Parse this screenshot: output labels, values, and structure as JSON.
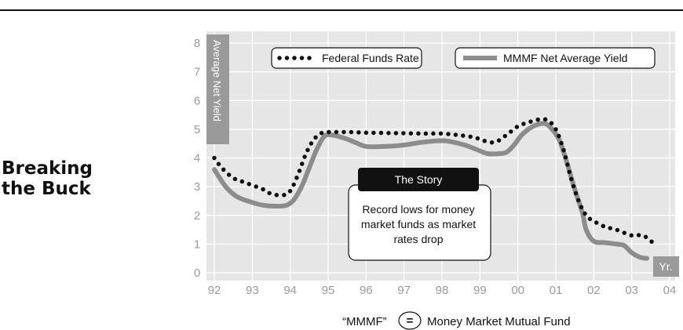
{
  "title_lines": [
    "Breaking",
    "the Buck"
  ],
  "chart_data": {
    "type": "line",
    "ylabel": "Average Net Yield",
    "xlabel": "Yr.",
    "ylim": [
      0,
      8
    ],
    "y_ticks": [
      "0",
      "1",
      "2",
      "3",
      "4",
      "5",
      "6",
      "7",
      "8"
    ],
    "x_ticks": [
      "92",
      "93",
      "94",
      "95",
      "96",
      "97",
      "98",
      "99",
      "00",
      "01",
      "02",
      "03",
      "04"
    ],
    "grid": true,
    "legend_position": "top",
    "series": [
      {
        "name": "Federal Funds Rate",
        "style": "dotted",
        "color": "#111111",
        "x": [
          1992.0,
          1992.2,
          1992.5,
          1992.8,
          1993.0,
          1993.3,
          1993.5,
          1993.8,
          1994.0,
          1994.2,
          1994.4,
          1994.6,
          1994.8,
          1995.0,
          1995.3,
          1995.6,
          1996.0,
          1996.5,
          1997.0,
          1997.5,
          1998.0,
          1998.4,
          1998.7,
          1998.9,
          1999.1,
          1999.4,
          1999.7,
          2000.0,
          2000.3,
          2000.6,
          2000.8,
          2001.0,
          2001.2,
          2001.4,
          2001.6,
          2001.8,
          2002.0,
          2002.3,
          2002.6,
          2003.0,
          2003.3,
          2003.6
        ],
        "values": [
          4.0,
          3.65,
          3.3,
          3.15,
          3.05,
          2.9,
          2.75,
          2.7,
          2.85,
          3.4,
          4.1,
          4.6,
          4.85,
          4.9,
          4.9,
          4.9,
          4.88,
          4.87,
          4.86,
          4.85,
          4.85,
          4.8,
          4.75,
          4.7,
          4.6,
          4.55,
          4.8,
          5.1,
          5.25,
          5.35,
          5.3,
          5.0,
          4.3,
          3.3,
          2.5,
          2.0,
          1.8,
          1.6,
          1.5,
          1.3,
          1.3,
          1.0
        ]
      },
      {
        "name": "MMMF Net Average Yield",
        "style": "solid",
        "color": "#8c8c8c",
        "x": [
          1992.0,
          1992.3,
          1992.6,
          1993.0,
          1993.3,
          1993.6,
          1993.9,
          1994.1,
          1994.3,
          1994.5,
          1994.7,
          1994.9,
          1995.1,
          1995.4,
          1995.7,
          1996.0,
          1996.5,
          1997.0,
          1997.5,
          1998.0,
          1998.3,
          1998.6,
          1998.9,
          1999.2,
          1999.5,
          1999.7,
          1999.9,
          2000.1,
          2000.4,
          2000.7,
          2000.9,
          2001.1,
          2001.3,
          2001.5,
          2001.7,
          2001.8,
          2002.0,
          2002.3,
          2002.6,
          2002.8,
          2003.0,
          2003.2,
          2003.4
        ],
        "values": [
          3.6,
          3.0,
          2.65,
          2.45,
          2.35,
          2.32,
          2.35,
          2.55,
          3.0,
          3.65,
          4.3,
          4.75,
          4.8,
          4.7,
          4.55,
          4.4,
          4.4,
          4.45,
          4.55,
          4.6,
          4.55,
          4.45,
          4.3,
          4.15,
          4.15,
          4.2,
          4.45,
          4.8,
          5.1,
          5.2,
          5.0,
          4.6,
          3.8,
          2.9,
          2.1,
          1.5,
          1.1,
          1.05,
          1.0,
          0.95,
          0.7,
          0.55,
          0.5
        ]
      }
    ],
    "annotation": {
      "heading": "The Story",
      "lines": [
        "Record lows for  money",
        "market funds as market",
        "rates drop"
      ]
    },
    "footnote": {
      "abbr": "“MMMF”",
      "symbol": "=",
      "meaning": "Money Market Mutual Fund"
    },
    "colors": {
      "plot_background": "#e6e6e6",
      "grid": "#ffffff",
      "axis_label_panel": "#9a9a9a",
      "tick_label": "#9a9a9a",
      "story_heading_bg": "#111111"
    }
  }
}
